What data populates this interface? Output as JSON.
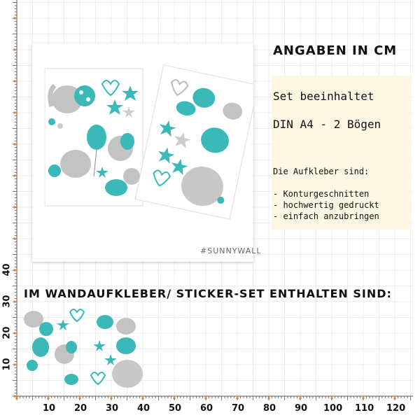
{
  "header": {
    "title": "ANGABEN IN CM"
  },
  "info": {
    "set_label": "Set beeinhaltet",
    "din_label": "DIN A4 - 2 Bögen",
    "stickers_heading": "Die Aufkleber sind:",
    "features": [
      "- Konturgeschnitten",
      "- hochwertig gedruckt",
      "- einfach anzubringen"
    ]
  },
  "product": {
    "brand": "#SUNNYWALL"
  },
  "set_heading": "IM WANDAUFKLEBER/ STICKER-SET ENTHALTEN SIND:",
  "ruler": {
    "x_labels": [
      "10",
      "20",
      "30",
      "40",
      "50",
      "60",
      "70",
      "80",
      "90",
      "100",
      "110",
      "120"
    ],
    "y_labels": [
      "40",
      "30",
      "20",
      "10"
    ]
  },
  "colors": {
    "teal": "#3bb8b8",
    "grey": "#bdbdbd",
    "grid": "#e6e6e6",
    "ruler_dot": "#e8761f"
  }
}
